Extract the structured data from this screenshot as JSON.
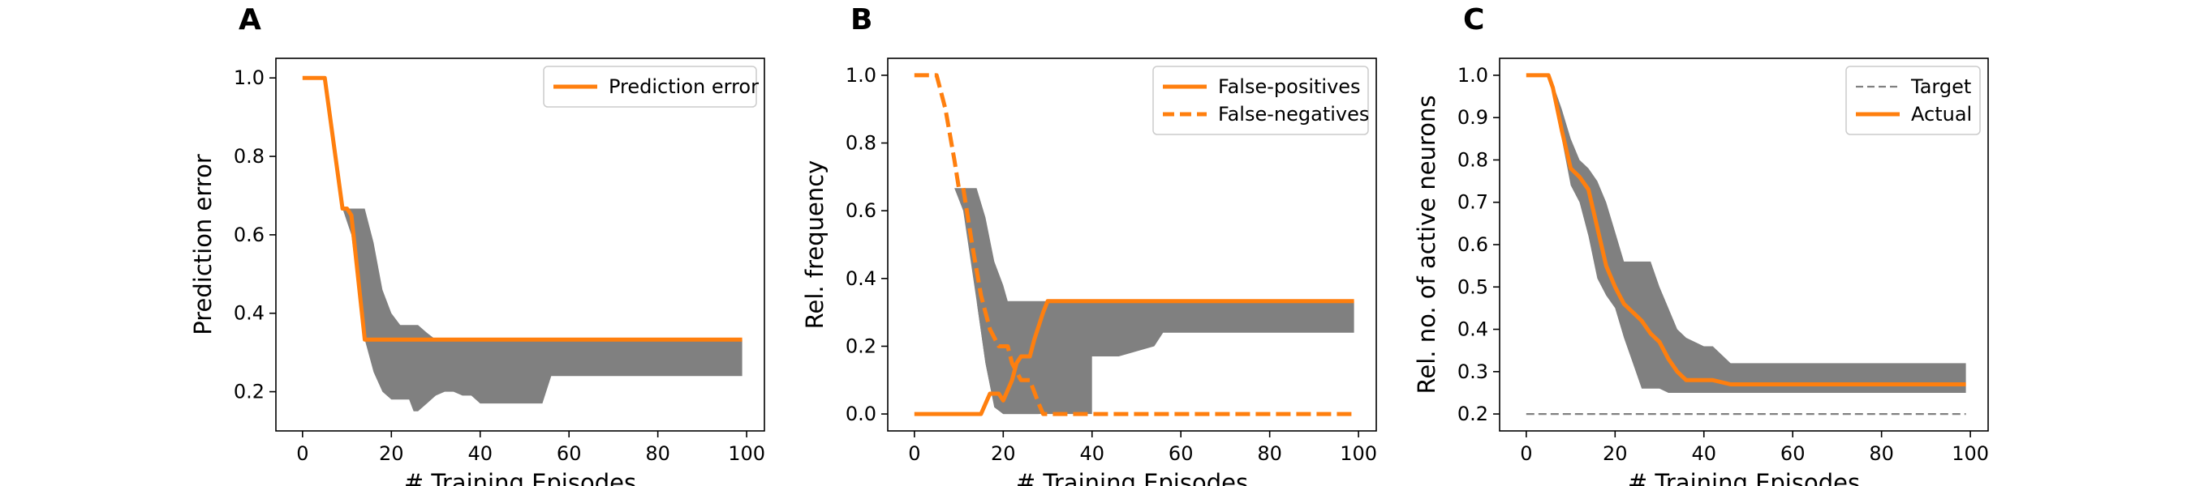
{
  "chart_data": [
    {
      "panel": "A",
      "type": "line",
      "xlabel": "# Training Episodes",
      "ylabel": "Prediction error",
      "xlim": [
        -6,
        104
      ],
      "ylim": [
        0.1,
        1.05
      ],
      "xticks": [
        0,
        20,
        40,
        60,
        80,
        100
      ],
      "yticks": [
        0.2,
        0.4,
        0.6,
        0.8,
        1.0
      ],
      "ytick_labels": [
        "0.2",
        "0.4",
        "0.6",
        "0.8",
        "1.0"
      ],
      "legend_position": "top-right",
      "series": [
        {
          "name": "Prediction error",
          "style": "solid",
          "color": "#ff7f0e",
          "x": [
            0,
            5,
            9,
            10,
            11,
            14,
            99
          ],
          "y": [
            1.0,
            1.0,
            0.667,
            0.667,
            0.65,
            0.333,
            0.333
          ]
        }
      ],
      "bands": [
        {
          "color": "#808080",
          "x": [
            9,
            11,
            14,
            16,
            18,
            20,
            22,
            24,
            25,
            26,
            28,
            30,
            32,
            34,
            36,
            38,
            40,
            46,
            54,
            56,
            60,
            99
          ],
          "upper": [
            0.667,
            0.667,
            0.667,
            0.58,
            0.46,
            0.4,
            0.37,
            0.37,
            0.37,
            0.37,
            0.35,
            0.333,
            0.333,
            0.333,
            0.333,
            0.333,
            0.333,
            0.333,
            0.333,
            0.333,
            0.333,
            0.333
          ],
          "lower": [
            0.667,
            0.6,
            0.333,
            0.25,
            0.2,
            0.18,
            0.18,
            0.18,
            0.15,
            0.15,
            0.17,
            0.19,
            0.2,
            0.2,
            0.19,
            0.19,
            0.17,
            0.17,
            0.17,
            0.24,
            0.24,
            0.24
          ]
        }
      ]
    },
    {
      "panel": "B",
      "type": "line",
      "xlabel": "# Training Episodes",
      "ylabel": "Rel. frequency",
      "xlim": [
        -6,
        104
      ],
      "ylim": [
        -0.05,
        1.05
      ],
      "xticks": [
        0,
        20,
        40,
        60,
        80,
        100
      ],
      "yticks": [
        0.0,
        0.2,
        0.4,
        0.6,
        0.8,
        1.0
      ],
      "ytick_labels": [
        "0.0",
        "0.2",
        "0.4",
        "0.6",
        "0.8",
        "1.0"
      ],
      "legend_position": "top-right",
      "series": [
        {
          "name": "False-positives",
          "style": "solid",
          "color": "#ff7f0e",
          "x": [
            0,
            15,
            17,
            19,
            20,
            21,
            22,
            23,
            24,
            26,
            27,
            29,
            30,
            99
          ],
          "y": [
            0.0,
            0.0,
            0.06,
            0.06,
            0.04,
            0.07,
            0.1,
            0.15,
            0.17,
            0.17,
            0.22,
            0.3,
            0.333,
            0.333
          ]
        },
        {
          "name": "False-negatives",
          "style": "dashed",
          "color": "#ff7f0e",
          "x": [
            0,
            5,
            7,
            9,
            10,
            11,
            13,
            15,
            17,
            19,
            21,
            22,
            24,
            26,
            28,
            29,
            31,
            99
          ],
          "y": [
            1.0,
            1.0,
            0.9,
            0.75,
            0.667,
            0.667,
            0.5,
            0.35,
            0.25,
            0.2,
            0.2,
            0.15,
            0.1,
            0.1,
            0.03,
            0.0,
            0.0,
            0.0
          ]
        }
      ],
      "bands": [
        {
          "color": "#808080",
          "x": [
            9,
            11,
            14,
            16,
            18,
            20,
            21,
            24,
            26,
            28,
            30,
            36,
            38,
            40,
            46,
            54,
            56,
            60,
            99
          ],
          "upper": [
            0.667,
            0.667,
            0.667,
            0.58,
            0.45,
            0.38,
            0.333,
            0.333,
            0.333,
            0.333,
            0.333,
            0.333,
            0.333,
            0.333,
            0.333,
            0.333,
            0.333,
            0.333,
            0.333
          ],
          "lower": [
            0.667,
            0.6,
            0.333,
            0.15,
            0.02,
            0.0,
            0.0,
            0.0,
            0.0,
            0.0,
            0.17,
            0.17,
            0.17,
            0.17,
            0.17,
            0.2,
            0.24,
            0.24,
            0.24
          ]
        },
        {
          "color": "#808080",
          "x": [
            14,
            16,
            18,
            20,
            22,
            24,
            26,
            28,
            30,
            32,
            34,
            36,
            38,
            40
          ],
          "upper": [
            0.333,
            0.2,
            0.08,
            0.07,
            0.1,
            0.17,
            0.2,
            0.28,
            0.333,
            0.333,
            0.333,
            0.333,
            0.3,
            0.2
          ],
          "lower": [
            0.333,
            0.15,
            0.02,
            0.0,
            0.0,
            0.0,
            0.0,
            0.0,
            0.0,
            0.0,
            0.0,
            0.0,
            0.0,
            0.0
          ]
        }
      ]
    },
    {
      "panel": "C",
      "type": "line",
      "xlabel": "# Training Episodes",
      "ylabel": "Rel. no. of active neurons",
      "xlim": [
        -6,
        104
      ],
      "ylim": [
        0.16,
        1.04
      ],
      "xticks": [
        0,
        20,
        40,
        60,
        80,
        100
      ],
      "yticks": [
        0.2,
        0.3,
        0.4,
        0.5,
        0.6,
        0.7,
        0.8,
        0.9,
        1.0
      ],
      "ytick_labels": [
        "0.2",
        "0.3",
        "0.4",
        "0.5",
        "0.6",
        "0.7",
        "0.8",
        "0.9",
        "1.0"
      ],
      "legend_position": "top-right",
      "series": [
        {
          "name": "Target",
          "style": "dashed-thin",
          "color": "#808080",
          "x": [
            0,
            99
          ],
          "y": [
            0.2,
            0.2
          ]
        },
        {
          "name": "Actual",
          "style": "solid",
          "color": "#ff7f0e",
          "x": [
            0,
            5,
            6,
            8,
            10,
            12,
            14,
            16,
            18,
            20,
            22,
            24,
            26,
            28,
            30,
            32,
            34,
            36,
            38,
            40,
            42,
            46,
            48,
            99
          ],
          "y": [
            1.0,
            1.0,
            0.97,
            0.87,
            0.78,
            0.76,
            0.73,
            0.64,
            0.55,
            0.5,
            0.46,
            0.44,
            0.42,
            0.39,
            0.37,
            0.33,
            0.3,
            0.28,
            0.28,
            0.28,
            0.28,
            0.27,
            0.27,
            0.27
          ]
        }
      ],
      "bands": [
        {
          "color": "#808080",
          "x": [
            5,
            6,
            8,
            10,
            12,
            14,
            16,
            18,
            20,
            22,
            24,
            26,
            28,
            30,
            32,
            34,
            36,
            38,
            40,
            42,
            44,
            46,
            48,
            99
          ],
          "upper": [
            1.0,
            0.98,
            0.92,
            0.85,
            0.8,
            0.78,
            0.75,
            0.7,
            0.63,
            0.56,
            0.56,
            0.56,
            0.56,
            0.5,
            0.45,
            0.4,
            0.38,
            0.37,
            0.36,
            0.36,
            0.34,
            0.32,
            0.32,
            0.32
          ],
          "lower": [
            1.0,
            0.95,
            0.85,
            0.74,
            0.7,
            0.62,
            0.52,
            0.48,
            0.45,
            0.38,
            0.32,
            0.26,
            0.26,
            0.26,
            0.25,
            0.25,
            0.25,
            0.25,
            0.25,
            0.25,
            0.25,
            0.25,
            0.25,
            0.25
          ]
        }
      ]
    }
  ]
}
